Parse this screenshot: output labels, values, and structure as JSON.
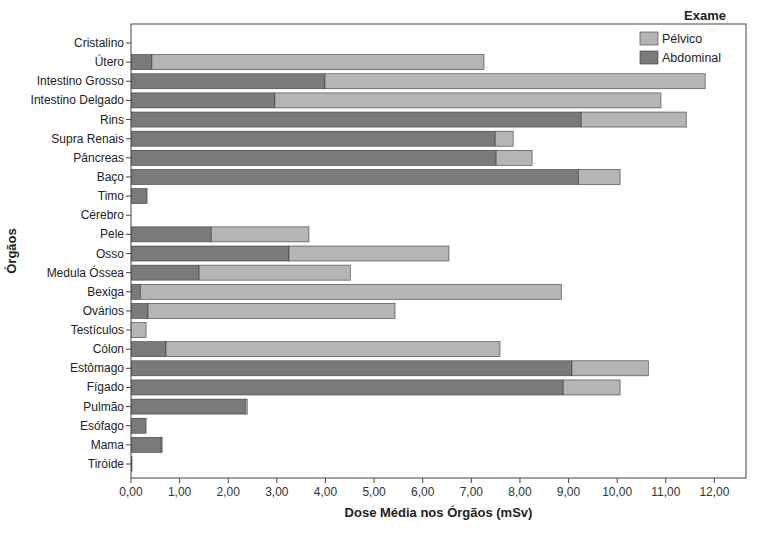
{
  "chart_data": {
    "type": "bar",
    "orientation": "horizontal",
    "stacked": true,
    "grid": false,
    "legend": "top-right",
    "legend_title": "Exame",
    "x_label": "Dose Média nos Órgãos (mSv)",
    "y_label": "Órgãos",
    "categories": [
      "Cristalino",
      "Útero",
      "Intestino Grosso",
      "Intestino Delgado",
      "Rins",
      "Supra Renais",
      "Pâncreas",
      "Baço",
      "Timo",
      "Cérebro",
      "Pele",
      "Osso",
      "Medula Óssea",
      "Bexiga",
      "Ovários",
      "Testículos",
      "Cólon",
      "Estômago",
      "Fígado",
      "Pulmão",
      "Esófago",
      "Mama",
      "Tiróide"
    ],
    "series": [
      {
        "name": "Abdominal",
        "color": "#7a7a7a",
        "values": [
          0,
          0.43,
          3.99,
          2.96,
          9.26,
          7.49,
          7.51,
          9.2,
          0.33,
          0,
          1.65,
          3.25,
          1.4,
          0.19,
          0.35,
          0,
          0.72,
          9.07,
          8.89,
          2.35,
          0.31,
          0.62,
          0.02
        ]
      },
      {
        "name": "Pélvico",
        "color": "#b5b5b5",
        "values": [
          0,
          6.83,
          7.82,
          7.94,
          2.16,
          0.37,
          0.74,
          0.86,
          0,
          0,
          2.01,
          3.29,
          3.11,
          8.66,
          5.08,
          0.31,
          6.87,
          1.57,
          1.17,
          0.04,
          0,
          0.02,
          0
        ]
      }
    ],
    "xlim": [
      0,
      12.65
    ],
    "xticks": [
      {
        "value": 0,
        "label": "0,00"
      },
      {
        "value": 1,
        "label": "1,00"
      },
      {
        "value": 2,
        "label": "2,00"
      },
      {
        "value": 3,
        "label": "3,00"
      },
      {
        "value": 4,
        "label": "4,00"
      },
      {
        "value": 5,
        "label": "5,00"
      },
      {
        "value": 6,
        "label": "6,00"
      },
      {
        "value": 7,
        "label": "7,00"
      },
      {
        "value": 8,
        "label": "8,00"
      },
      {
        "value": 9,
        "label": "9,00"
      },
      {
        "value": 10,
        "label": "10,00"
      },
      {
        "value": 11,
        "label": "11,00"
      },
      {
        "value": 12,
        "label": "12,00"
      }
    ]
  }
}
